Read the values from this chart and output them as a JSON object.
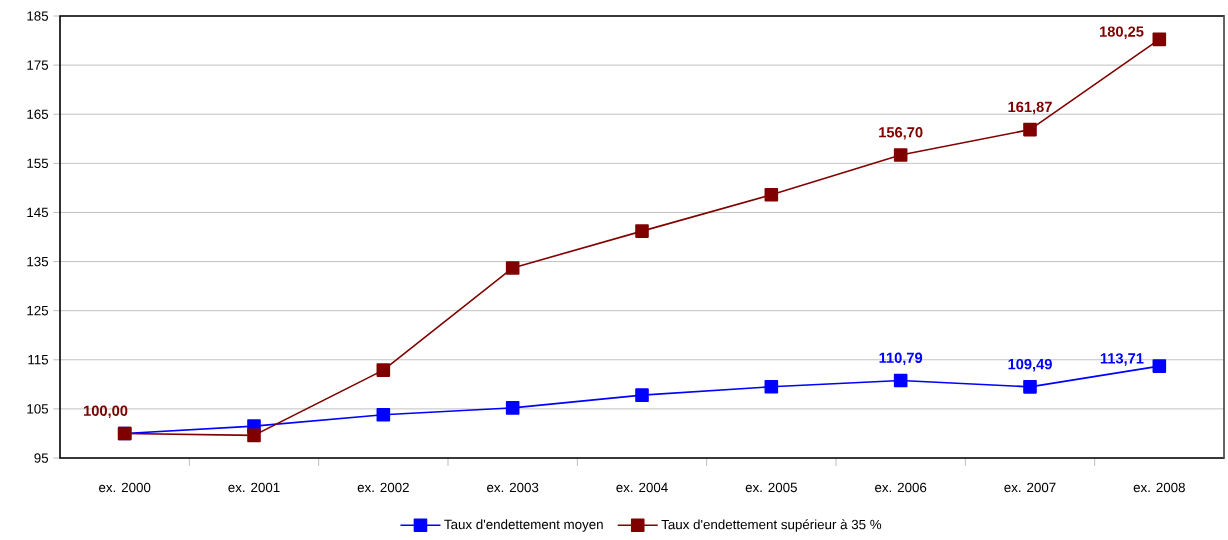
{
  "chart_data": {
    "type": "line",
    "categories": [
      "ex. 2000",
      "ex. 2001",
      "ex. 2002",
      "ex. 2003",
      "ex. 2004",
      "ex. 2005",
      "ex. 2006",
      "ex. 2007",
      "ex. 2008"
    ],
    "series": [
      {
        "name": "Taux d'endettement moyen",
        "color": "#0000ff",
        "values": [
          100.0,
          101.5,
          103.8,
          105.2,
          107.8,
          109.5,
          110.79,
          109.49,
          113.71
        ],
        "value_labels": [
          null,
          null,
          null,
          null,
          null,
          null,
          "110,79",
          "109,49",
          "113,71"
        ]
      },
      {
        "name": "Taux d'endettement supérieur à 35 %",
        "color": "#800000",
        "values": [
          100.0,
          99.6,
          112.9,
          133.7,
          141.2,
          148.6,
          156.7,
          161.87,
          180.25
        ],
        "value_labels": [
          "100,00",
          null,
          null,
          null,
          null,
          null,
          "156,70",
          "161,87",
          "180,25"
        ]
      }
    ],
    "ylim": [
      95,
      185
    ],
    "yticks": [
      95,
      105,
      115,
      125,
      135,
      145,
      155,
      165,
      175,
      185
    ],
    "grid": "y",
    "legend": "bottom",
    "marker": "square",
    "line_style": "solid"
  }
}
